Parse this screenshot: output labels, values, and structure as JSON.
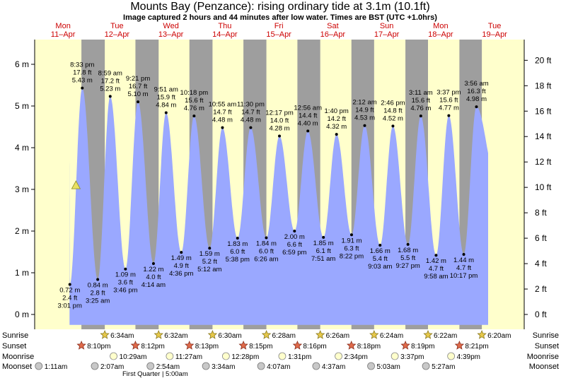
{
  "title": "Mounts Bay (Penzance): rising  ordinary tide at 3.1m (10.1ft)",
  "subtitle": "Image captured 2 hours and 44 minutes after low water. Times are BST (UTC +1.0hrs)",
  "days": [
    {
      "dow": "Mon",
      "date": "11–Apr"
    },
    {
      "dow": "Tue",
      "date": "12–Apr"
    },
    {
      "dow": "Wed",
      "date": "13–Apr"
    },
    {
      "dow": "Thu",
      "date": "14–Apr"
    },
    {
      "dow": "Fri",
      "date": "15–Apr"
    },
    {
      "dow": "Sat",
      "date": "16–Apr"
    },
    {
      "dow": "Sun",
      "date": "17–Apr"
    },
    {
      "dow": "Mon",
      "date": "18–Apr"
    },
    {
      "dow": "Tue",
      "date": "19–Apr"
    }
  ],
  "chart_data": {
    "type": "area",
    "x_unit": "days from 00:00 Mon 11-Apr (BST)",
    "xlim": [
      0,
      8.42
    ],
    "ylim": [
      -0.3,
      6.6
    ],
    "y_ticks_m": [
      0,
      1,
      2,
      3,
      4,
      5,
      6
    ],
    "y_ticks_ft": [
      0,
      2,
      4,
      6,
      8,
      10,
      12,
      14,
      16,
      18,
      20
    ],
    "y_tick_labels_m": [
      "0 m",
      "1 m",
      "2 m",
      "3 m",
      "4 m",
      "5 m",
      "6 m"
    ],
    "y_tick_labels_ft": [
      "0 ft",
      "2 ft",
      "4 ft",
      "6 ft",
      "8 ft",
      "10 ft",
      "12 ft",
      "14 ft",
      "16 ft",
      "18 ft",
      "20 ft"
    ],
    "colors": {
      "water": "#9aa8ff",
      "day": "#ffffcc",
      "night": "#9e9e9e",
      "day_label": "#cc0000",
      "current_marker": "#e8e060"
    },
    "start_level_m": 3.9,
    "tide_events": [
      {
        "time": "3:01 pm",
        "day": 0,
        "h": 15.02,
        "m": 0.72,
        "ft": "2.4 ft",
        "type": "low"
      },
      {
        "time": "8:33 pm",
        "day": 0,
        "h": 20.55,
        "m": 5.43,
        "ft": "17.8 ft",
        "type": "high"
      },
      {
        "time": "3:25 am",
        "day": 1,
        "h": 3.42,
        "m": 0.84,
        "ft": "2.8 ft",
        "type": "low"
      },
      {
        "time": "8:59 am",
        "day": 1,
        "h": 8.98,
        "m": 5.23,
        "ft": "17.2 ft",
        "type": "high"
      },
      {
        "time": "3:46 pm",
        "day": 1,
        "h": 15.77,
        "m": 1.09,
        "ft": "3.6 ft",
        "type": "low"
      },
      {
        "time": "9:21 pm",
        "day": 1,
        "h": 21.35,
        "m": 5.1,
        "ft": "16.7 ft",
        "type": "high"
      },
      {
        "time": "4:14 am",
        "day": 2,
        "h": 4.23,
        "m": 1.22,
        "ft": "4.0 ft",
        "type": "low"
      },
      {
        "time": "9:51 am",
        "day": 2,
        "h": 9.85,
        "m": 4.84,
        "ft": "15.9 ft",
        "type": "high"
      },
      {
        "time": "4:36 pm",
        "day": 2,
        "h": 16.6,
        "m": 1.49,
        "ft": "4.9 ft",
        "type": "low"
      },
      {
        "time": "10:18 pm",
        "day": 2,
        "h": 22.3,
        "m": 4.76,
        "ft": "15.6 ft",
        "type": "high"
      },
      {
        "time": "5:12 am",
        "day": 3,
        "h": 5.2,
        "m": 1.59,
        "ft": "5.2 ft",
        "type": "low"
      },
      {
        "time": "10:55 am",
        "day": 3,
        "h": 10.92,
        "m": 4.48,
        "ft": "14.7 ft",
        "type": "high"
      },
      {
        "time": "5:38 pm",
        "day": 3,
        "h": 17.63,
        "m": 1.83,
        "ft": "6.0 ft",
        "type": "low"
      },
      {
        "time": "11:30 pm",
        "day": 3,
        "h": 23.5,
        "m": 4.48,
        "ft": "14.7 ft",
        "type": "high"
      },
      {
        "time": "6:26 am",
        "day": 4,
        "h": 6.43,
        "m": 1.84,
        "ft": "6.0 ft",
        "type": "low"
      },
      {
        "time": "12:17 pm",
        "day": 4,
        "h": 12.28,
        "m": 4.28,
        "ft": "14.0 ft",
        "type": "high"
      },
      {
        "time": "6:59 pm",
        "day": 4,
        "h": 18.98,
        "m": 2.0,
        "ft": "6.6 ft",
        "type": "low"
      },
      {
        "time": "12:56 am",
        "day": 5,
        "h": 0.93,
        "m": 4.4,
        "ft": "14.4 ft",
        "type": "high"
      },
      {
        "time": "7:51 am",
        "day": 5,
        "h": 7.85,
        "m": 1.85,
        "ft": "6.1 ft",
        "type": "low"
      },
      {
        "time": "1:40 pm",
        "day": 5,
        "h": 13.67,
        "m": 4.32,
        "ft": "14.2 ft",
        "type": "high"
      },
      {
        "time": "8:22 pm",
        "day": 5,
        "h": 20.37,
        "m": 1.91,
        "ft": "6.3 ft",
        "type": "low"
      },
      {
        "time": "2:12 am",
        "day": 6,
        "h": 2.2,
        "m": 4.53,
        "ft": "14.9 ft",
        "type": "high"
      },
      {
        "time": "9:03 am",
        "day": 6,
        "h": 9.05,
        "m": 1.66,
        "ft": "5.4 ft",
        "type": "low"
      },
      {
        "time": "2:46 pm",
        "day": 6,
        "h": 14.77,
        "m": 4.52,
        "ft": "14.8 ft",
        "type": "high"
      },
      {
        "time": "9:27 pm",
        "day": 6,
        "h": 21.45,
        "m": 1.68,
        "ft": "5.5 ft",
        "type": "low"
      },
      {
        "time": "3:11 am",
        "day": 7,
        "h": 3.18,
        "m": 4.76,
        "ft": "15.6 ft",
        "type": "high"
      },
      {
        "time": "9:58 am",
        "day": 7,
        "h": 9.97,
        "m": 1.42,
        "ft": "4.7 ft",
        "type": "low"
      },
      {
        "time": "3:37 pm",
        "day": 7,
        "h": 15.62,
        "m": 4.77,
        "ft": "15.6 ft",
        "type": "high"
      },
      {
        "time": "10:17 pm",
        "day": 7,
        "h": 22.28,
        "m": 1.44,
        "ft": "4.7 ft",
        "type": "low"
      },
      {
        "time": "3:56 am",
        "day": 8,
        "h": 3.93,
        "m": 4.98,
        "ft": "16.3 ft",
        "type": "high"
      }
    ],
    "current": {
      "day": 0,
      "h": 17.75,
      "m": 3.1
    },
    "sunrise": [
      {
        "day": 1,
        "h": 6.57,
        "label": "6:34am"
      },
      {
        "day": 2,
        "h": 6.53,
        "label": "6:32am"
      },
      {
        "day": 3,
        "h": 6.5,
        "label": "6:30am"
      },
      {
        "day": 4,
        "h": 6.47,
        "label": "6:28am"
      },
      {
        "day": 5,
        "h": 6.43,
        "label": "6:26am"
      },
      {
        "day": 6,
        "h": 6.4,
        "label": "6:24am"
      },
      {
        "day": 7,
        "h": 6.37,
        "label": "6:22am"
      },
      {
        "day": 8,
        "h": 6.33,
        "label": "6:20am"
      }
    ],
    "sunset": [
      {
        "day": 0,
        "h": 20.17,
        "label": "8:10pm"
      },
      {
        "day": 1,
        "h": 20.2,
        "label": "8:12pm"
      },
      {
        "day": 2,
        "h": 20.22,
        "label": "8:13pm"
      },
      {
        "day": 3,
        "h": 20.25,
        "label": "8:15pm"
      },
      {
        "day": 4,
        "h": 20.27,
        "label": "8:16pm"
      },
      {
        "day": 5,
        "h": 20.3,
        "label": "8:18pm"
      },
      {
        "day": 6,
        "h": 20.32,
        "label": "8:19pm"
      },
      {
        "day": 7,
        "h": 20.35,
        "label": "8:21pm"
      }
    ],
    "moonrise": [
      {
        "day": 1,
        "h": 10.48,
        "label": "10:29am"
      },
      {
        "day": 2,
        "h": 11.45,
        "label": "11:27am"
      },
      {
        "day": 3,
        "h": 12.47,
        "label": "12:28pm"
      },
      {
        "day": 4,
        "h": 13.52,
        "label": "1:31pm"
      },
      {
        "day": 5,
        "h": 14.57,
        "label": "2:34pm"
      },
      {
        "day": 6,
        "h": 15.62,
        "label": "3:37pm"
      },
      {
        "day": 7,
        "h": 16.65,
        "label": "4:39pm"
      }
    ],
    "moonset": [
      {
        "day": 0,
        "h": 1.18,
        "label": "1:11am"
      },
      {
        "day": 1,
        "h": 2.12,
        "label": "2:07am"
      },
      {
        "day": 2,
        "h": 2.9,
        "label": "2:54am"
      },
      {
        "day": 3,
        "h": 3.57,
        "label": "3:34am"
      },
      {
        "day": 4,
        "h": 4.12,
        "label": "4:07am"
      },
      {
        "day": 5,
        "h": 4.62,
        "label": "4:37am"
      },
      {
        "day": 6,
        "h": 5.05,
        "label": "5:03am"
      },
      {
        "day": 7,
        "h": 5.45,
        "label": "5:27am"
      }
    ],
    "moon_phase": {
      "day": 2,
      "h": 5.0,
      "label": "First Quarter | 5:00am"
    },
    "row_labels": [
      "Sunrise",
      "Sunset",
      "Moonrise",
      "Moonset"
    ]
  }
}
